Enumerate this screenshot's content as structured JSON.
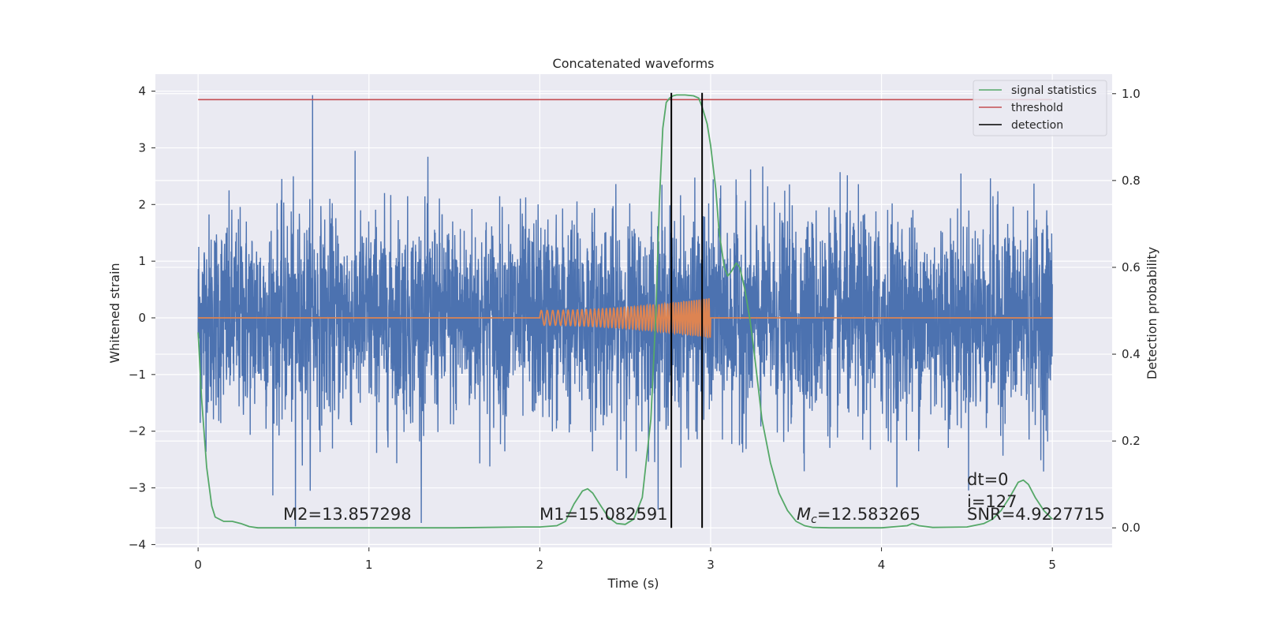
{
  "chart_data": {
    "type": "line",
    "title": "Concatenated waveforms",
    "xlabel": "Time (s)",
    "ylabel": "Whitened strain",
    "y2label": "Detection probability",
    "xlim": [
      -0.25,
      5.35
    ],
    "ylim": [
      -4.05,
      4.3
    ],
    "y2lim": [
      -0.045,
      1.045
    ],
    "x_ticks": [
      "0",
      "1",
      "2",
      "3",
      "4",
      "5"
    ],
    "y_ticks": [
      "4",
      "3",
      "2",
      "1",
      "0",
      "−1",
      "−2",
      "−3",
      "−4"
    ],
    "y2_ticks": [
      "1.0",
      "0.8",
      "0.6",
      "0.4",
      "0.2",
      "0.0"
    ],
    "grid": true,
    "legend_position": "top-right",
    "colors": {
      "whitened_strain": "#4c72b0",
      "injected_waveform": "#dd8452",
      "signal_statistics": "#55a868",
      "threshold": "#c44e52",
      "detection": "#000000",
      "axes_bg": "#eaeaf2",
      "grid": "#ffffff"
    },
    "series": [
      {
        "name": "",
        "axis": "left",
        "kind": "noise",
        "x_range": [
          0,
          5
        ],
        "approx_envelope": [
          -2.5,
          2.5
        ],
        "max": 3.93,
        "min": -3.68
      },
      {
        "name": "",
        "axis": "left",
        "kind": "chirp",
        "start": 2.0,
        "end": 3.0,
        "amp_start": 0.13,
        "amp_end": 0.35
      },
      {
        "name": "signal statistics",
        "axis": "right",
        "x": [
          0.0,
          0.02,
          0.05,
          0.08,
          0.1,
          0.15,
          0.2,
          0.25,
          0.3,
          0.35,
          0.5,
          1.0,
          1.5,
          1.9,
          2.0,
          2.1,
          2.15,
          2.2,
          2.25,
          2.28,
          2.31,
          2.35,
          2.4,
          2.45,
          2.5,
          2.55,
          2.6,
          2.65,
          2.68,
          2.7,
          2.72,
          2.74,
          2.76,
          2.78,
          2.8,
          2.85,
          2.9,
          2.93,
          2.95,
          2.98,
          3.0,
          3.03,
          3.05,
          3.08,
          3.1,
          3.12,
          3.15,
          3.17,
          3.2,
          3.23,
          3.25,
          3.28,
          3.3,
          3.35,
          3.4,
          3.45,
          3.5,
          3.55,
          3.6,
          3.7,
          4.0,
          4.15,
          4.18,
          4.22,
          4.3,
          4.5,
          4.6,
          4.65,
          4.7,
          4.75,
          4.8,
          4.83,
          4.86,
          4.9,
          4.95,
          5.0
        ],
        "values": [
          0.45,
          0.3,
          0.14,
          0.05,
          0.025,
          0.015,
          0.015,
          0.01,
          0.003,
          0.0,
          0.0,
          0.0,
          0.0,
          0.002,
          0.002,
          0.005,
          0.015,
          0.055,
          0.085,
          0.09,
          0.08,
          0.055,
          0.025,
          0.01,
          0.008,
          0.02,
          0.07,
          0.25,
          0.5,
          0.75,
          0.92,
          0.98,
          0.99,
          0.995,
          0.997,
          0.997,
          0.995,
          0.99,
          0.97,
          0.93,
          0.88,
          0.78,
          0.68,
          0.6,
          0.58,
          0.59,
          0.61,
          0.6,
          0.55,
          0.48,
          0.42,
          0.32,
          0.25,
          0.15,
          0.08,
          0.04,
          0.015,
          0.005,
          0.001,
          0.0,
          0.0,
          0.005,
          0.01,
          0.005,
          0.001,
          0.002,
          0.01,
          0.02,
          0.04,
          0.07,
          0.105,
          0.11,
          0.1,
          0.07,
          0.04,
          0.02
        ]
      },
      {
        "name": "threshold",
        "axis": "left",
        "x": [
          0,
          5
        ],
        "values": [
          3.85,
          3.85
        ]
      },
      {
        "name": "detection",
        "axis": "left",
        "x_positions": [
          2.77,
          2.95
        ]
      }
    ],
    "annotations": {
      "m2": "M2=13.857298",
      "m1": "M1=15.082591",
      "mc_symbol": "M",
      "mc_sub": "c",
      "mc_value": "=12.583265",
      "dt": "dt=0",
      "i": "i=127",
      "snr": "SNR=4.9227715"
    }
  }
}
